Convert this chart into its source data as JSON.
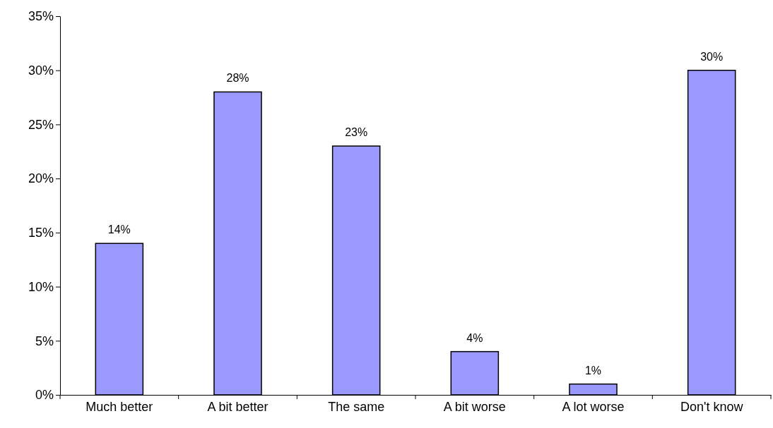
{
  "chart_data": {
    "type": "bar",
    "categories": [
      "Much better",
      "A bit better",
      "The same",
      "A bit worse",
      "A lot worse",
      "Don't know"
    ],
    "values": [
      14,
      28,
      23,
      4,
      1,
      30
    ],
    "value_labels": [
      "14%",
      "28%",
      "23%",
      "4%",
      "1%",
      "30%"
    ],
    "color": "#9999ff",
    "ylim": [
      0,
      35
    ],
    "yticks": [
      {
        "value": 0,
        "label": "0%"
      },
      {
        "value": 5,
        "label": "5%"
      },
      {
        "value": 10,
        "label": "10%"
      },
      {
        "value": 15,
        "label": "15%"
      },
      {
        "value": 20,
        "label": "20%"
      },
      {
        "value": 25,
        "label": "25%"
      },
      {
        "value": 30,
        "label": "30%"
      },
      {
        "value": 35,
        "label": "35%"
      }
    ],
    "grid": false
  }
}
